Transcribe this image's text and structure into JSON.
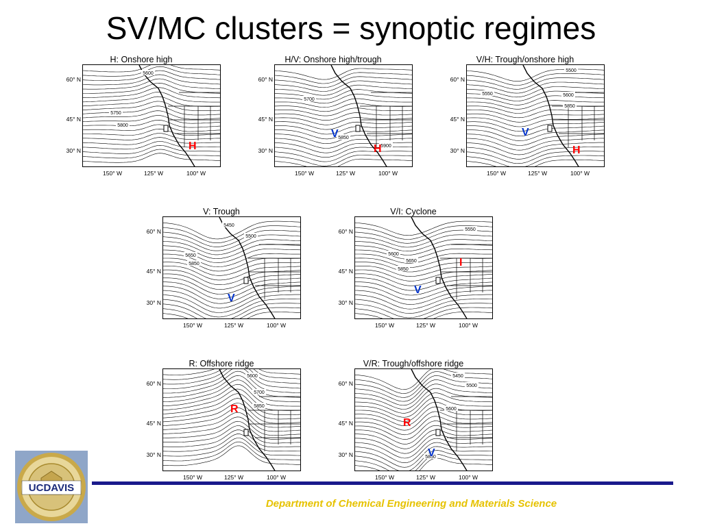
{
  "slide": {
    "title": "SV/MC clusters = synoptic regimes",
    "footer": "Department of Chemical Engineering and Materials Science",
    "logo_text": "UCDAVIS",
    "logo_ring_text": "UNIVERSITY OF CALIFORNIA"
  },
  "axis": {
    "lat_labels": [
      "60° N",
      "45° N",
      "30° N"
    ],
    "lon_labels": [
      "150° W",
      "125° W",
      "100° W"
    ]
  },
  "panels": [
    {
      "id": "h",
      "title": "H: Onshore high",
      "contours": [
        "5600",
        "5750",
        "5800"
      ],
      "markers": [
        {
          "text": "H",
          "color": "red"
        }
      ]
    },
    {
      "id": "hv",
      "title": "H/V: Onshore high/trough",
      "contours": [
        "5700",
        "5850",
        "5900"
      ],
      "markers": [
        {
          "text": "V",
          "color": "blue"
        },
        {
          "text": "H",
          "color": "red"
        }
      ]
    },
    {
      "id": "vh",
      "title": "V/H: Trough/onshore high",
      "contours": [
        "5500",
        "5550",
        "5600",
        "5850"
      ],
      "markers": [
        {
          "text": "V",
          "color": "blue"
        },
        {
          "text": "H",
          "color": "red"
        }
      ]
    },
    {
      "id": "v",
      "title": "V: Trough",
      "contours": [
        "5450",
        "5500",
        "5650",
        "5850"
      ],
      "markers": [
        {
          "text": "V",
          "color": "blue"
        }
      ]
    },
    {
      "id": "vi",
      "title": "V/I: Cyclone",
      "contours": [
        "5550",
        "5600",
        "5650",
        "5850"
      ],
      "markers": [
        {
          "text": "I",
          "color": "red"
        },
        {
          "text": "V",
          "color": "blue"
        }
      ]
    },
    {
      "id": "r",
      "title": "R: Offshore ridge",
      "contours": [
        "5600",
        "5700",
        "5850"
      ],
      "markers": [
        {
          "text": "R",
          "color": "red"
        }
      ]
    },
    {
      "id": "vr",
      "title": "V/R: Trough/offshore ridge",
      "contours": [
        "5450",
        "5500",
        "5600",
        "5850"
      ],
      "markers": [
        {
          "text": "R",
          "color": "red"
        },
        {
          "text": "V",
          "color": "blue"
        }
      ]
    }
  ],
  "colors": {
    "title_text": "#000000",
    "footer_rule": "#1a1a8c",
    "footer_text": "#e6c200",
    "marker_red": "#ff0000",
    "marker_blue": "#0033cc"
  }
}
